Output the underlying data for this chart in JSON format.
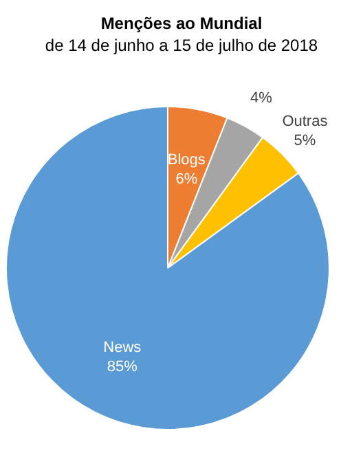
{
  "chart_data": {
    "type": "pie",
    "title": "Menções ao Mundial",
    "subtitle": "de 14 de junho a 15 de julho de 2018",
    "categories": [
      "Blogs",
      null,
      "Outras",
      "News"
    ],
    "values": [
      6,
      4,
      5,
      85
    ],
    "colors": [
      "#ed7d31",
      "#a5a5a5",
      "#ffc000",
      "#5b9bd5"
    ],
    "value_labels": [
      "6%",
      "4%",
      "5%",
      "85%"
    ]
  }
}
